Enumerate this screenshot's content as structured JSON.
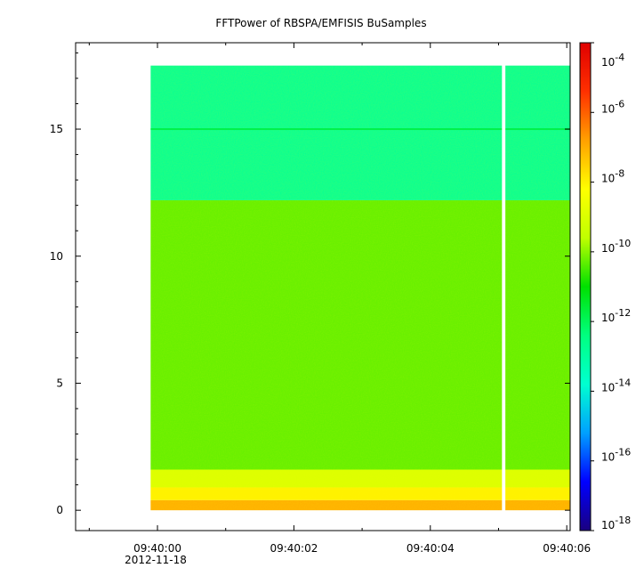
{
  "chart_data": {
    "type": "heatmap",
    "title": "FFTPower of RBSPA/EMFISIS  BuSamples",
    "xlabel": "",
    "ylabel": "",
    "x_ticks": [
      {
        "label": "09:40:00",
        "sublabel": "2012-11-18",
        "seconds": 0
      },
      {
        "label": "09:40:02",
        "seconds": 2
      },
      {
        "label": "09:40:04",
        "seconds": 4
      },
      {
        "label": "09:40:06",
        "seconds": 6
      }
    ],
    "xlim": [
      "09:39:58.8",
      "09:40:06.05"
    ],
    "y_ticks": [
      0,
      5,
      10,
      15
    ],
    "ylim": [
      -0.8,
      18.4
    ],
    "data_extent": {
      "x_start": "09:39:59.9",
      "x_end": "09:40:06.05",
      "y_start": 0,
      "y_end": 17.5
    },
    "data_gap": {
      "x_start": "09:40:05.05",
      "x_end": "09:40:05.1"
    },
    "bands": [
      {
        "y_from": 0.0,
        "y_to": 0.4,
        "log_power": -7.0
      },
      {
        "y_from": 0.4,
        "y_to": 0.9,
        "log_power": -8.0
      },
      {
        "y_from": 0.9,
        "y_to": 1.6,
        "log_power": -9.0
      },
      {
        "y_from": 1.6,
        "y_to": 12.2,
        "log_power": -10.3
      },
      {
        "y_from": 12.2,
        "y_to": 17.5,
        "log_power": -12.8
      }
    ],
    "line_feature": {
      "y": 15.0,
      "log_power": -11.8
    },
    "colorbar": {
      "scale": "log",
      "range": [
        1e-18,
        0.0001
      ],
      "ticks": [
        {
          "base": "10",
          "exp": "-4",
          "value": 0.0001
        },
        {
          "base": "10",
          "exp": "-6",
          "value": 1e-06
        },
        {
          "base": "10",
          "exp": "-8",
          "value": 1e-08
        },
        {
          "base": "10",
          "exp": "-10",
          "value": 1e-10
        },
        {
          "base": "10",
          "exp": "-12",
          "value": 1e-12
        },
        {
          "base": "10",
          "exp": "-14",
          "value": 1e-14
        },
        {
          "base": "10",
          "exp": "-16",
          "value": 1e-16
        },
        {
          "base": "10",
          "exp": "-18",
          "value": 1e-18
        }
      ],
      "colormap": [
        "#1a0080",
        "#0000ff",
        "#00a0ff",
        "#00ffd0",
        "#00ff80",
        "#00e000",
        "#c0ff00",
        "#ffff00",
        "#ffa000",
        "#ff3000",
        "#e00000"
      ]
    },
    "grid": false,
    "legend": "none"
  }
}
